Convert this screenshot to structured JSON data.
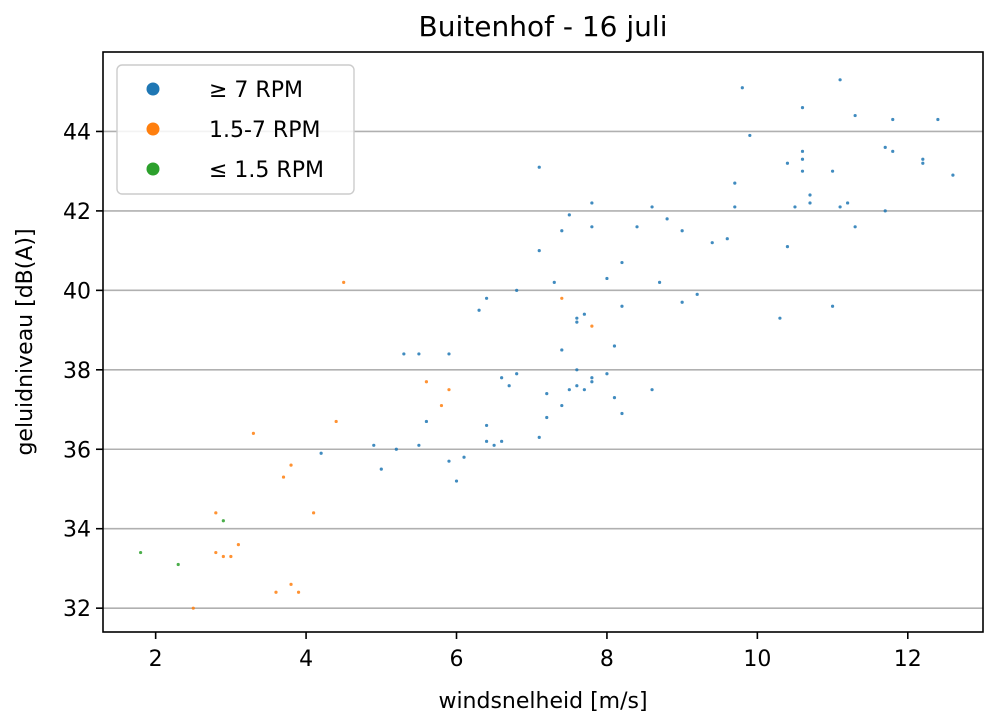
{
  "chart_data": {
    "type": "scatter",
    "title": "Buitenhof - 16 juli",
    "xlabel": "windsnelheid [m/s]",
    "ylabel": "geluidniveau [dB(A)]",
    "xlim": [
      1.3,
      13.0
    ],
    "ylim": [
      31.4,
      46.0
    ],
    "xticks": [
      2,
      4,
      6,
      8,
      10,
      12
    ],
    "yticks": [
      32,
      34,
      36,
      38,
      40,
      42,
      44
    ],
    "grid": "horizontal",
    "legend_position": "upper-left",
    "series": [
      {
        "name": "≥ 7 RPM",
        "color": "#1f77b4",
        "points": [
          [
            4.2,
            35.9
          ],
          [
            4.9,
            36.1
          ],
          [
            5.0,
            35.5
          ],
          [
            5.2,
            36.0
          ],
          [
            5.3,
            38.4
          ],
          [
            5.5,
            38.4
          ],
          [
            5.5,
            36.1
          ],
          [
            5.6,
            36.7
          ],
          [
            5.9,
            38.4
          ],
          [
            5.9,
            35.7
          ],
          [
            6.0,
            35.2
          ],
          [
            6.1,
            35.8
          ],
          [
            6.3,
            39.5
          ],
          [
            6.4,
            39.8
          ],
          [
            6.4,
            36.6
          ],
          [
            6.4,
            36.2
          ],
          [
            6.5,
            36.1
          ],
          [
            6.6,
            36.2
          ],
          [
            6.6,
            37.8
          ],
          [
            6.7,
            37.6
          ],
          [
            6.8,
            37.9
          ],
          [
            6.8,
            40.0
          ],
          [
            7.1,
            43.1
          ],
          [
            7.1,
            41.0
          ],
          [
            7.1,
            36.3
          ],
          [
            7.2,
            37.4
          ],
          [
            7.2,
            36.8
          ],
          [
            7.3,
            40.2
          ],
          [
            7.4,
            41.5
          ],
          [
            7.4,
            38.5
          ],
          [
            7.4,
            37.1
          ],
          [
            7.5,
            41.9
          ],
          [
            7.5,
            37.5
          ],
          [
            7.6,
            39.3
          ],
          [
            7.6,
            39.2
          ],
          [
            7.6,
            38.0
          ],
          [
            7.6,
            37.6
          ],
          [
            7.7,
            39.4
          ],
          [
            7.7,
            37.5
          ],
          [
            7.8,
            42.2
          ],
          [
            7.8,
            41.6
          ],
          [
            7.8,
            37.8
          ],
          [
            7.8,
            37.7
          ],
          [
            8.0,
            40.3
          ],
          [
            8.0,
            37.9
          ],
          [
            8.1,
            38.6
          ],
          [
            8.1,
            37.3
          ],
          [
            8.2,
            40.7
          ],
          [
            8.2,
            39.6
          ],
          [
            8.2,
            36.9
          ],
          [
            8.4,
            41.6
          ],
          [
            8.6,
            42.1
          ],
          [
            8.6,
            37.5
          ],
          [
            8.7,
            40.2
          ],
          [
            8.8,
            41.8
          ],
          [
            9.0,
            41.5
          ],
          [
            9.0,
            39.7
          ],
          [
            9.2,
            39.9
          ],
          [
            9.4,
            41.2
          ],
          [
            9.6,
            41.3
          ],
          [
            9.7,
            42.7
          ],
          [
            9.7,
            42.1
          ],
          [
            9.8,
            45.1
          ],
          [
            9.9,
            43.9
          ],
          [
            10.3,
            39.3
          ],
          [
            10.4,
            43.2
          ],
          [
            10.4,
            41.1
          ],
          [
            10.5,
            42.1
          ],
          [
            10.6,
            44.6
          ],
          [
            10.6,
            43.5
          ],
          [
            10.6,
            43.3
          ],
          [
            10.6,
            43.0
          ],
          [
            10.7,
            42.4
          ],
          [
            10.7,
            42.2
          ],
          [
            11.0,
            43.0
          ],
          [
            11.0,
            39.6
          ],
          [
            11.1,
            45.3
          ],
          [
            11.1,
            42.1
          ],
          [
            11.2,
            42.2
          ],
          [
            11.3,
            44.4
          ],
          [
            11.3,
            41.6
          ],
          [
            11.7,
            43.6
          ],
          [
            11.7,
            42.0
          ],
          [
            11.8,
            44.3
          ],
          [
            11.8,
            43.5
          ],
          [
            12.2,
            43.3
          ],
          [
            12.2,
            43.2
          ],
          [
            12.4,
            44.3
          ],
          [
            12.6,
            42.9
          ]
        ]
      },
      {
        "name": "1.5-7 RPM",
        "color": "#ff7f0e",
        "points": [
          [
            2.5,
            32.0
          ],
          [
            2.8,
            34.4
          ],
          [
            2.8,
            33.4
          ],
          [
            2.9,
            33.3
          ],
          [
            3.0,
            33.3
          ],
          [
            3.1,
            33.6
          ],
          [
            3.3,
            36.4
          ],
          [
            3.6,
            32.4
          ],
          [
            3.7,
            35.3
          ],
          [
            3.8,
            35.6
          ],
          [
            3.8,
            32.6
          ],
          [
            3.9,
            32.4
          ],
          [
            4.1,
            34.4
          ],
          [
            4.4,
            36.7
          ],
          [
            4.5,
            40.2
          ],
          [
            5.6,
            37.7
          ],
          [
            5.8,
            37.1
          ],
          [
            5.9,
            37.5
          ],
          [
            7.4,
            39.8
          ],
          [
            7.8,
            39.1
          ]
        ]
      },
      {
        "name": "≤ 1.5 RPM",
        "color": "#2ca02c",
        "points": [
          [
            1.8,
            33.4
          ],
          [
            2.3,
            33.1
          ],
          [
            2.9,
            34.2
          ]
        ]
      }
    ]
  }
}
